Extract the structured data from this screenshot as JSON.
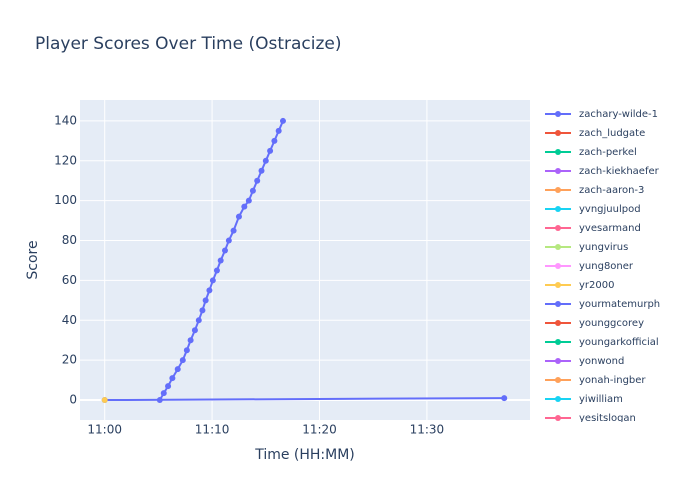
{
  "chart_data": {
    "type": "line",
    "title": "Player Scores Over Time (Ostracize)",
    "x_label": "Time (HH:MM)",
    "y_label": "Score",
    "xlim": [
      -2.3,
      39.6
    ],
    "ylim": [
      -10,
      150.5
    ],
    "xticks": [
      {
        "value": 0,
        "label": "11:00"
      },
      {
        "value": 10,
        "label": "11:10"
      },
      {
        "value": 20,
        "label": "11:20"
      },
      {
        "value": 30,
        "label": "11:30"
      }
    ],
    "yticks": [
      0,
      20,
      40,
      60,
      80,
      100,
      120,
      140
    ],
    "grid": true,
    "legend": "right",
    "series": [
      {
        "name": "zachary-wilde-1",
        "color": "#636efa",
        "x": [
          0,
          37.2
        ],
        "values": [
          0,
          1
        ]
      },
      {
        "name": "zach_ludgate",
        "color": "#EF553B",
        "x": [],
        "values": []
      },
      {
        "name": "zach-perkel",
        "color": "#00cc96",
        "x": [],
        "values": []
      },
      {
        "name": "zach-kiekhaefer",
        "color": "#ab63fa",
        "x": [],
        "values": []
      },
      {
        "name": "zach-aaron-3",
        "color": "#FFA15A",
        "x": [],
        "values": []
      },
      {
        "name": "yvngjuulpod",
        "color": "#19d3f3",
        "x": [],
        "values": []
      },
      {
        "name": "yvesarmand",
        "color": "#FF6692",
        "x": [],
        "values": []
      },
      {
        "name": "yungvirus",
        "color": "#B6E880",
        "x": [],
        "values": []
      },
      {
        "name": "yung8oner",
        "color": "#FF97FF",
        "x": [],
        "values": []
      },
      {
        "name": "yr2000",
        "color": "#FECB52",
        "x": [
          0
        ],
        "values": [
          0
        ]
      },
      {
        "name": "yourmatemurph",
        "color": "#636efa",
        "x": [
          5.13,
          5.5,
          5.9,
          6.3,
          6.8,
          7.27,
          7.65,
          8.0,
          8.4,
          8.76,
          9.1,
          9.4,
          9.75,
          10.07,
          10.45,
          10.8,
          11.2,
          11.56,
          12.0,
          12.5,
          13.0,
          13.42,
          13.8,
          14.2,
          14.6,
          15.0,
          15.4,
          15.8,
          16.2,
          16.6
        ],
        "values": [
          0,
          3.5,
          7,
          11,
          15.5,
          20,
          25,
          30,
          35,
          40,
          45,
          50,
          55,
          60,
          65,
          70,
          75,
          80,
          85,
          92,
          97,
          100,
          105,
          110,
          115,
          120,
          125,
          130,
          135,
          140
        ]
      },
      {
        "name": "younggcorey",
        "color": "#EF553B",
        "x": [],
        "values": []
      },
      {
        "name": "youngarkofficial",
        "color": "#00cc96",
        "x": [],
        "values": []
      },
      {
        "name": "yonwond",
        "color": "#ab63fa",
        "x": [],
        "values": []
      },
      {
        "name": "yonah-ingber",
        "color": "#FFA15A",
        "x": [],
        "values": []
      },
      {
        "name": "yiwilliam",
        "color": "#19d3f3",
        "x": [],
        "values": []
      },
      {
        "name": "yesitslogan",
        "color": "#FF6692",
        "x": [],
        "values": []
      }
    ]
  }
}
